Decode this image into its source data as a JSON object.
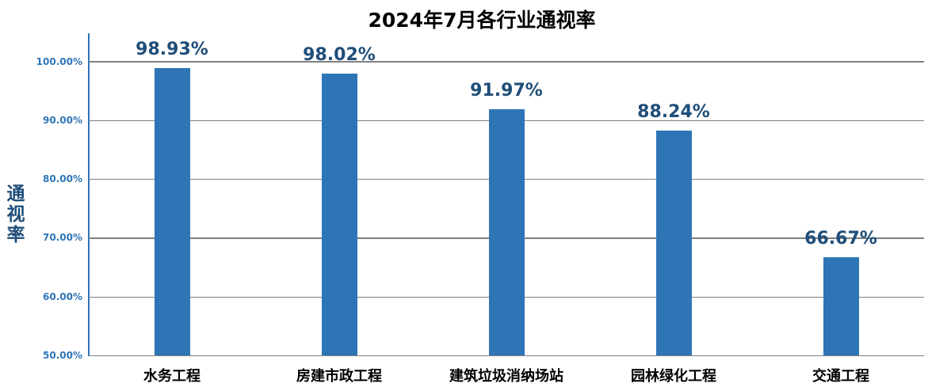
{
  "chart_data": {
    "type": "bar",
    "title": "2024年7月各行业通视率",
    "xlabel": "",
    "ylabel": "通视率",
    "categories": [
      "水务工程",
      "房建市政工程",
      "建筑垃圾消纳场站",
      "园林绿化工程",
      "交通工程"
    ],
    "values": [
      98.93,
      98.02,
      91.97,
      88.24,
      66.67
    ],
    "value_labels": [
      "98.93%",
      "98.02%",
      "91.97%",
      "88.24%",
      "66.67%"
    ],
    "ylim": [
      50,
      100
    ],
    "yticks": [
      "100.00%",
      "90.00%",
      "80.00%",
      "70.00%",
      "60.00%",
      "50.00%"
    ],
    "grid": true,
    "legend": "none",
    "colors": {
      "bar": "#2e75b6",
      "value_label": "#1f4e79",
      "ytick": "#2e75b6",
      "ylabel": "#1f4e79",
      "grid": "#808080"
    }
  }
}
